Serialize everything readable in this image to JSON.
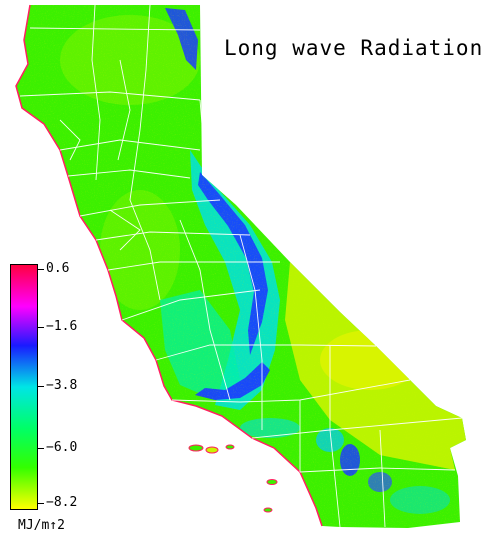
{
  "title": "Long wave Radiation",
  "legend": {
    "labels": [
      "0.6",
      "−1.6",
      "−3.8",
      "−6.0",
      "−8.2"
    ],
    "units": "MJ/m↑2",
    "colors": [
      "#ff0040",
      "#ff00ff",
      "#1a1aff",
      "#00e5e5",
      "#00ff66",
      "#33ff00",
      "#ffff00"
    ]
  },
  "colors": {
    "land_base": "#3cf000",
    "land_alt": "#7cf400",
    "land_dry": "#c8f400",
    "mountain": "#1a3cff",
    "cyan_zone": "#00d2ff",
    "teal_zone": "#00f0aa",
    "coast_edge": "#ff2060",
    "county_lines": "#ffffff"
  }
}
